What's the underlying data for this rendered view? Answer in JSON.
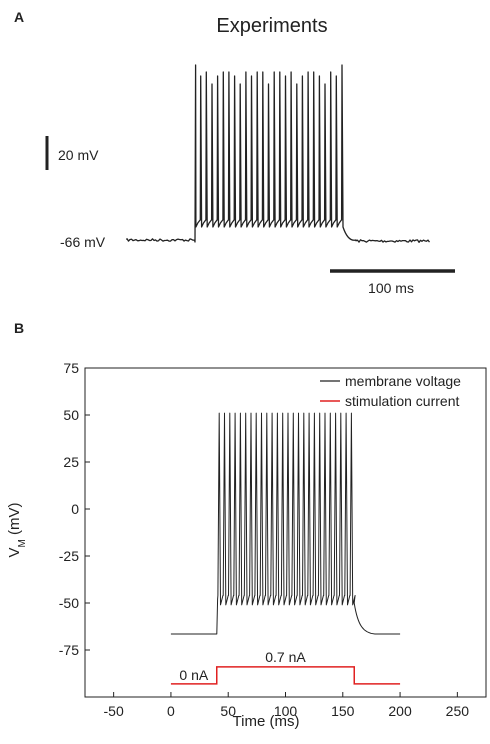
{
  "chart_data": [
    {
      "panel": "A",
      "type": "line",
      "title": "Experiments",
      "scale_bar_voltage": "20 mV",
      "scale_bar_time": "100 ms",
      "resting_label": "-66 mV",
      "spike_count": 26,
      "colors": {
        "trace": "#222222"
      }
    },
    {
      "panel": "B",
      "type": "line",
      "xlabel": "Time (ms)",
      "ylabel_main": "V",
      "ylabel_sub": "M",
      "ylabel_unit": " (mV)",
      "xlim": [
        -75,
        275
      ],
      "ylim": [
        -100,
        75
      ],
      "xticks": [
        -50,
        0,
        50,
        100,
        150,
        200,
        250
      ],
      "yticks": [
        75,
        50,
        25,
        0,
        -25,
        -50,
        -75
      ],
      "resting_mV": -66.5,
      "spike_peak_mV": 51,
      "spike_trough_mV": -51,
      "stim_onset_ms": 40,
      "stim_offset_ms": 160,
      "spike_count": 26,
      "stimulus": {
        "baseline_level": -93,
        "pulse_level": -84,
        "baseline_label": "0 nA",
        "pulse_label": "0.7 nA",
        "x_start": 0,
        "x_end": 200
      },
      "legend": {
        "position": "top-right",
        "items": [
          {
            "name": "membrane voltage",
            "color": "#222222"
          },
          {
            "name": "stimulation current",
            "color": "#e02020"
          }
        ]
      }
    }
  ]
}
